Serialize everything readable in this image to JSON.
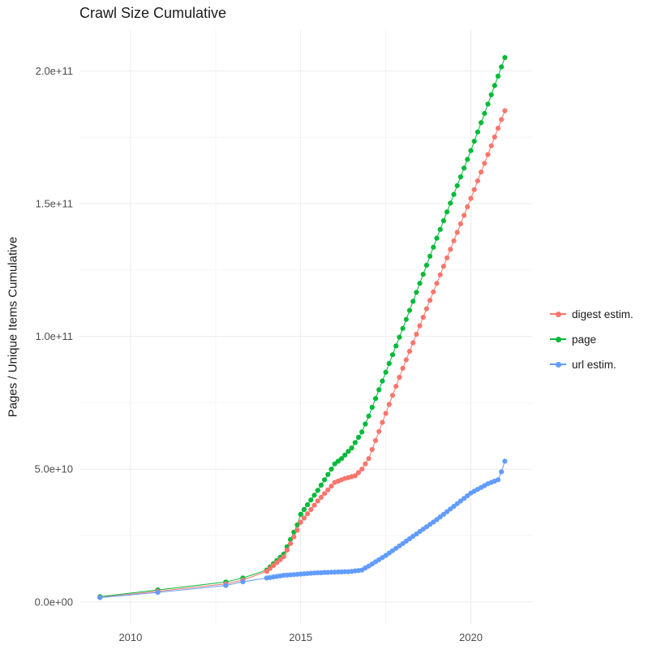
{
  "chart_data": {
    "type": "scatter",
    "title": "Crawl Size Cumulative",
    "xlabel": "",
    "ylabel": "Pages / Unique Items Cumulative",
    "background": "#FFFFFF",
    "grid": true,
    "grid_major_color": "#EBEBEB",
    "grid_minor_color": "#F5F5F5",
    "legend_position": "right",
    "x_ticks": [
      2010,
      2015,
      2020
    ],
    "x_tick_labels": [
      "2010",
      "2015",
      "2020"
    ],
    "x_minor": [
      2012.5,
      2017.5
    ],
    "y_ticks_billions": [
      0,
      50,
      100,
      150,
      200
    ],
    "y_tick_labels": [
      "0.0e+00",
      "5.0e+10",
      "1.0e+11",
      "1.5e+11",
      "2.0e+11"
    ],
    "y_minor_billions": [
      25,
      75,
      125,
      175
    ],
    "x_range": [
      2008.5,
      2021.8
    ],
    "y_range_billions": [
      -8.6,
      215.4
    ],
    "y_unit": 1000000000,
    "draw_order": [
      1,
      0,
      2
    ],
    "x": [
      2009.1,
      2010.8,
      2012.8,
      2013.3,
      2014.0,
      2014.1,
      2014.2,
      2014.3,
      2014.4,
      2014.5,
      2014.6,
      2014.7,
      2014.8,
      2014.9,
      2015.0,
      2015.1,
      2015.2,
      2015.3,
      2015.4,
      2015.5,
      2015.6,
      2015.7,
      2015.8,
      2015.9,
      2016.0,
      2016.1,
      2016.2,
      2016.3,
      2016.4,
      2016.5,
      2016.6,
      2016.7,
      2016.8,
      2016.9,
      2017.0,
      2017.1,
      2017.2,
      2017.3,
      2017.4,
      2017.5,
      2017.6,
      2017.7,
      2017.8,
      2017.9,
      2018.0,
      2018.1,
      2018.2,
      2018.3,
      2018.4,
      2018.5,
      2018.6,
      2018.7,
      2018.8,
      2018.9,
      2019.0,
      2019.1,
      2019.2,
      2019.3,
      2019.4,
      2019.5,
      2019.6,
      2019.7,
      2019.8,
      2019.9,
      2020.0,
      2020.1,
      2020.2,
      2020.3,
      2020.4,
      2020.5,
      2020.6,
      2020.7,
      2020.8,
      2020.9,
      2021.0
    ],
    "series": [
      {
        "id": "digest-estim",
        "name": "digest estim.",
        "color": "#F8766D",
        "values_billions": [
          1.7,
          4.0,
          6.8,
          8.2,
          11.5,
          12.6,
          13.7,
          14.8,
          15.9,
          17.0,
          19.5,
          22.0,
          24.5,
          27.0,
          30.0,
          31.6,
          33.2,
          34.8,
          36.4,
          38.0,
          39.4,
          40.8,
          42.2,
          43.6,
          45.0,
          45.5,
          46.0,
          46.5,
          46.8,
          47.2,
          47.5,
          48.7,
          50.0,
          52.0,
          54.0,
          57.4,
          60.8,
          64.2,
          67.6,
          71.0,
          74.4,
          77.8,
          81.2,
          84.6,
          88.0,
          91.2,
          94.4,
          97.6,
          100.8,
          104.0,
          107.2,
          110.4,
          113.6,
          116.8,
          120.0,
          123.2,
          126.4,
          129.6,
          132.8,
          136.0,
          139.2,
          142.4,
          145.6,
          148.8,
          152.0,
          155.3,
          158.6,
          161.9,
          165.2,
          168.5,
          171.8,
          175.1,
          178.4,
          181.7,
          185.0
        ]
      },
      {
        "id": "page",
        "name": "page",
        "color": "#00BA38",
        "values_billions": [
          2.0,
          4.5,
          7.5,
          9.0,
          12.0,
          13.2,
          14.4,
          15.6,
          16.8,
          18.0,
          20.8,
          23.5,
          26.3,
          29.0,
          33.0,
          34.8,
          36.6,
          38.4,
          40.2,
          42.0,
          44.0,
          46.0,
          48.0,
          50.0,
          52.0,
          53.0,
          54.0,
          55.3,
          56.7,
          58.0,
          60.0,
          62.0,
          64.0,
          67.0,
          70.0,
          73.3,
          76.6,
          79.9,
          83.2,
          86.5,
          89.8,
          93.1,
          96.4,
          99.7,
          103.0,
          106.4,
          109.8,
          113.2,
          116.6,
          120.0,
          123.4,
          126.8,
          130.2,
          133.6,
          137.0,
          140.3,
          143.6,
          146.9,
          150.2,
          153.5,
          156.8,
          160.1,
          163.4,
          166.7,
          170.0,
          173.5,
          177.0,
          180.5,
          184.0,
          187.5,
          191.0,
          194.5,
          198.0,
          201.5,
          205.0
        ]
      },
      {
        "id": "url-estim",
        "name": "url estim.",
        "color": "#619CFF",
        "values_billions": [
          1.6,
          3.6,
          6.2,
          7.6,
          9.0,
          9.2,
          9.4,
          9.6,
          9.8,
          10.0,
          10.1,
          10.2,
          10.3,
          10.4,
          10.5,
          10.6,
          10.7,
          10.8,
          10.9,
          11.0,
          11.0,
          11.1,
          11.1,
          11.2,
          11.2,
          11.3,
          11.3,
          11.4,
          11.4,
          11.5,
          11.7,
          11.8,
          12.0,
          12.8,
          13.5,
          14.3,
          15.1,
          15.9,
          16.7,
          17.5,
          18.4,
          19.3,
          20.2,
          21.1,
          22.0,
          22.9,
          23.8,
          24.7,
          25.6,
          26.5,
          27.4,
          28.3,
          29.2,
          30.1,
          31.0,
          32.0,
          33.0,
          34.0,
          35.0,
          36.0,
          37.0,
          38.0,
          39.0,
          40.0,
          41.0,
          41.7,
          42.4,
          43.1,
          43.8,
          44.5,
          45.0,
          45.5,
          46.0,
          49.0,
          53.0
        ]
      }
    ]
  }
}
